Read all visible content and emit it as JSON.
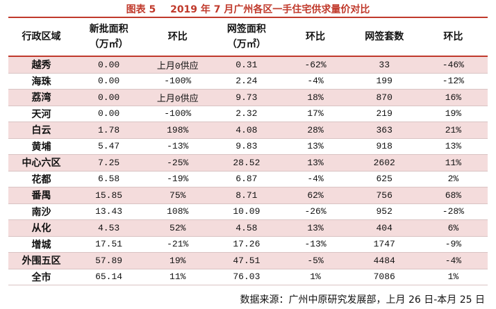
{
  "title": {
    "label": "图表 5",
    "text": "2019 年 7 月广州各区一手住宅供求量价对比"
  },
  "table": {
    "header": [
      {
        "name": "行政区域"
      },
      {
        "name": "新批面积",
        "unit": "（万㎡）"
      },
      {
        "name": "环比"
      },
      {
        "name": "网签面积",
        "unit": "（万㎡）"
      },
      {
        "name": "环比"
      },
      {
        "name": "网签套数"
      },
      {
        "name": "环比"
      }
    ],
    "rows": [
      [
        "越秀",
        "0.00",
        "上月0供应",
        "0.31",
        "-62%",
        "33",
        "-46%"
      ],
      [
        "海珠",
        "0.00",
        "-100%",
        "2.24",
        "-4%",
        "199",
        "-12%"
      ],
      [
        "荔湾",
        "0.00",
        "上月0供应",
        "9.73",
        "18%",
        "870",
        "16%"
      ],
      [
        "天河",
        "0.00",
        "-100%",
        "2.32",
        "17%",
        "219",
        "19%"
      ],
      [
        "白云",
        "1.78",
        "198%",
        "4.08",
        "28%",
        "363",
        "21%"
      ],
      [
        "黄埔",
        "5.47",
        "-13%",
        "9.83",
        "13%",
        "918",
        "13%"
      ],
      [
        "中心六区",
        "7.25",
        "-25%",
        "28.52",
        "13%",
        "2602",
        "11%"
      ],
      [
        "花都",
        "6.58",
        "-19%",
        "6.87",
        "-4%",
        "625",
        "2%"
      ],
      [
        "番禺",
        "15.85",
        "75%",
        "8.71",
        "62%",
        "756",
        "68%"
      ],
      [
        "南沙",
        "13.43",
        "108%",
        "10.09",
        "-26%",
        "952",
        "-28%"
      ],
      [
        "从化",
        "4.53",
        "52%",
        "4.58",
        "13%",
        "404",
        "6%"
      ],
      [
        "增城",
        "17.51",
        "-21%",
        "17.26",
        "-13%",
        "1747",
        "-9%"
      ],
      [
        "外围五区",
        "57.89",
        "19%",
        "47.51",
        "-5%",
        "4484",
        "-4%"
      ],
      [
        "全市",
        "65.14",
        "11%",
        "76.03",
        "1%",
        "7086",
        "1%"
      ]
    ]
  },
  "footer": "数据来源：广州中原研究发展部，上月 26 日-本月 25 日"
}
